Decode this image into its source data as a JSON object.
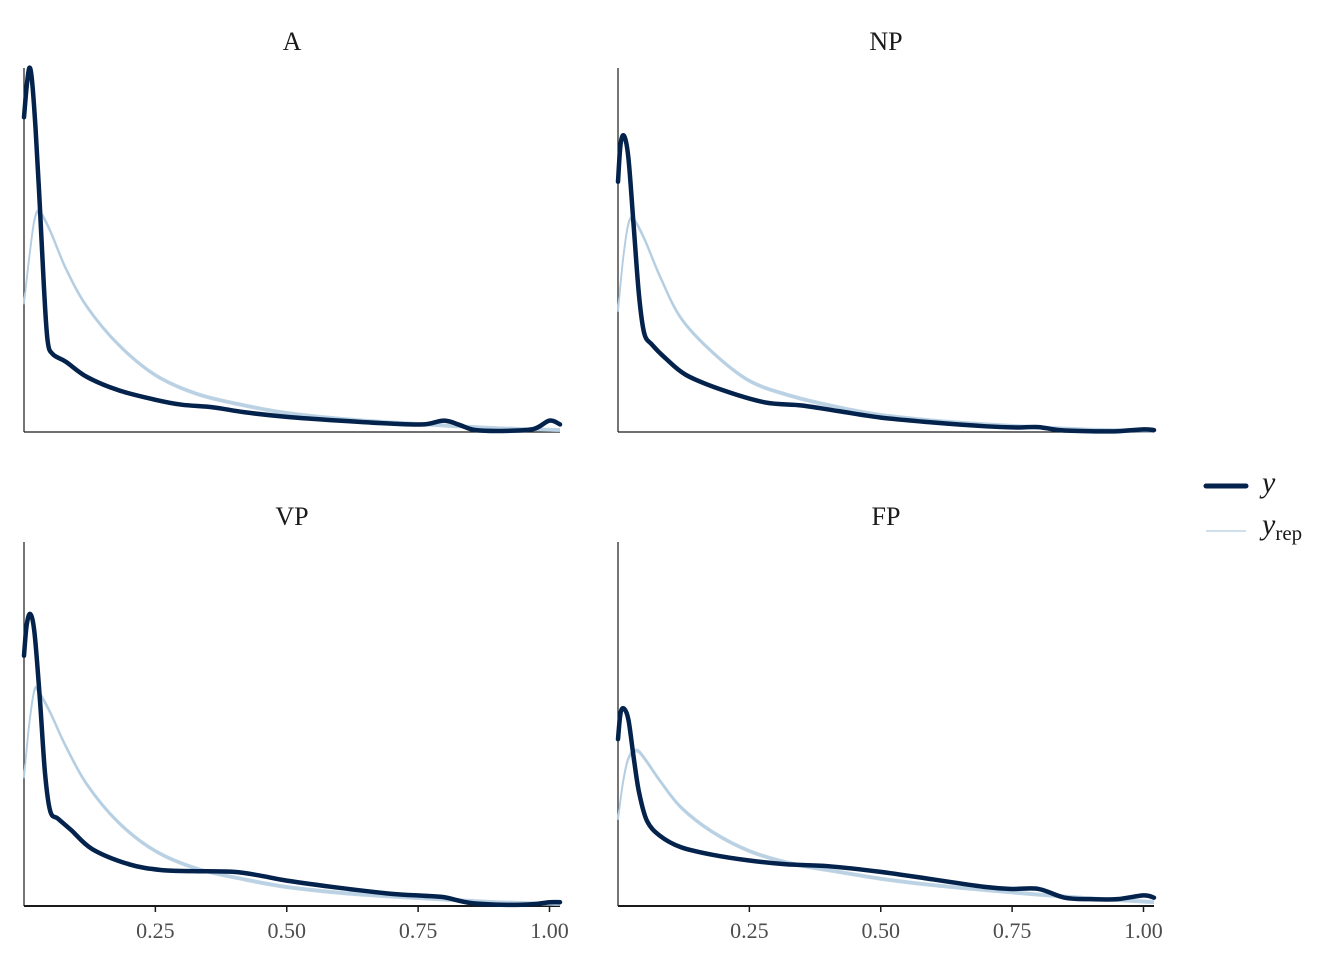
{
  "chart_data": {
    "type": "area",
    "description_kind": "posterior predictive density overlay",
    "x_ticks": [
      0.25,
      0.5,
      0.75,
      1.0
    ],
    "x_tick_labels": [
      "0.25",
      "0.50",
      "0.75",
      "1.00"
    ],
    "xlim": [
      0,
      1.02
    ],
    "y_axis_labels": false,
    "grid": false,
    "legend_position": "right",
    "colors": {
      "y": "#03224c",
      "yrep": "#b3cde0"
    },
    "legend": [
      {
        "key": "y",
        "label": "y",
        "sub": ""
      },
      {
        "key": "yrep",
        "label": "y",
        "sub": "rep"
      }
    ],
    "series": [
      {
        "name": "A",
        "ylim": [
          0,
          9.6
        ],
        "y": [
          [
            0.0,
            8.3
          ],
          [
            0.005,
            9.1
          ],
          [
            0.01,
            9.6
          ],
          [
            0.015,
            9.3
          ],
          [
            0.022,
            8.0
          ],
          [
            0.03,
            6.0
          ],
          [
            0.038,
            3.8
          ],
          [
            0.045,
            2.4
          ],
          [
            0.055,
            2.05
          ],
          [
            0.08,
            1.85
          ],
          [
            0.12,
            1.45
          ],
          [
            0.18,
            1.1
          ],
          [
            0.25,
            0.85
          ],
          [
            0.3,
            0.72
          ],
          [
            0.36,
            0.65
          ],
          [
            0.42,
            0.52
          ],
          [
            0.5,
            0.4
          ],
          [
            0.6,
            0.3
          ],
          [
            0.7,
            0.22
          ],
          [
            0.76,
            0.2
          ],
          [
            0.8,
            0.3
          ],
          [
            0.83,
            0.18
          ],
          [
            0.86,
            0.05
          ],
          [
            0.92,
            0.03
          ],
          [
            0.97,
            0.08
          ],
          [
            1.0,
            0.3
          ],
          [
            1.02,
            0.2
          ]
        ],
        "yrep": [
          [
            0.0,
            3.4
          ],
          [
            0.01,
            4.6
          ],
          [
            0.02,
            5.6
          ],
          [
            0.03,
            5.8
          ],
          [
            0.05,
            5.3
          ],
          [
            0.08,
            4.3
          ],
          [
            0.12,
            3.3
          ],
          [
            0.18,
            2.3
          ],
          [
            0.25,
            1.5
          ],
          [
            0.33,
            1.0
          ],
          [
            0.42,
            0.7
          ],
          [
            0.5,
            0.5
          ],
          [
            0.6,
            0.35
          ],
          [
            0.7,
            0.25
          ],
          [
            0.8,
            0.17
          ],
          [
            0.9,
            0.1
          ],
          [
            1.0,
            0.06
          ],
          [
            1.02,
            0.05
          ]
        ]
      },
      {
        "name": "NP",
        "ylim": [
          0,
          9.6
        ],
        "y": [
          [
            0.0,
            6.6
          ],
          [
            0.005,
            7.6
          ],
          [
            0.012,
            7.8
          ],
          [
            0.02,
            7.2
          ],
          [
            0.03,
            5.4
          ],
          [
            0.04,
            3.6
          ],
          [
            0.05,
            2.6
          ],
          [
            0.065,
            2.3
          ],
          [
            0.09,
            1.95
          ],
          [
            0.13,
            1.5
          ],
          [
            0.2,
            1.1
          ],
          [
            0.28,
            0.78
          ],
          [
            0.35,
            0.7
          ],
          [
            0.42,
            0.55
          ],
          [
            0.5,
            0.38
          ],
          [
            0.6,
            0.25
          ],
          [
            0.7,
            0.15
          ],
          [
            0.76,
            0.12
          ],
          [
            0.8,
            0.13
          ],
          [
            0.84,
            0.05
          ],
          [
            0.9,
            0.02
          ],
          [
            0.95,
            0.02
          ],
          [
            1.0,
            0.07
          ],
          [
            1.02,
            0.05
          ]
        ],
        "yrep": [
          [
            0.0,
            3.2
          ],
          [
            0.01,
            4.6
          ],
          [
            0.02,
            5.5
          ],
          [
            0.03,
            5.6
          ],
          [
            0.05,
            5.1
          ],
          [
            0.08,
            4.1
          ],
          [
            0.12,
            3.0
          ],
          [
            0.18,
            2.1
          ],
          [
            0.25,
            1.35
          ],
          [
            0.33,
            0.95
          ],
          [
            0.42,
            0.65
          ],
          [
            0.5,
            0.45
          ],
          [
            0.6,
            0.3
          ],
          [
            0.7,
            0.2
          ],
          [
            0.8,
            0.12
          ],
          [
            0.9,
            0.06
          ],
          [
            1.0,
            0.04
          ],
          [
            1.02,
            0.03
          ]
        ]
      },
      {
        "name": "VP",
        "ylim": [
          0,
          9.6
        ],
        "y": [
          [
            0.0,
            6.6
          ],
          [
            0.005,
            7.4
          ],
          [
            0.012,
            7.7
          ],
          [
            0.02,
            7.2
          ],
          [
            0.03,
            5.5
          ],
          [
            0.04,
            3.5
          ],
          [
            0.05,
            2.5
          ],
          [
            0.065,
            2.3
          ],
          [
            0.09,
            2.0
          ],
          [
            0.13,
            1.5
          ],
          [
            0.2,
            1.1
          ],
          [
            0.26,
            0.95
          ],
          [
            0.32,
            0.92
          ],
          [
            0.4,
            0.9
          ],
          [
            0.45,
            0.8
          ],
          [
            0.5,
            0.67
          ],
          [
            0.6,
            0.48
          ],
          [
            0.7,
            0.32
          ],
          [
            0.76,
            0.27
          ],
          [
            0.8,
            0.23
          ],
          [
            0.85,
            0.08
          ],
          [
            0.92,
            0.03
          ],
          [
            0.97,
            0.05
          ],
          [
            1.0,
            0.1
          ],
          [
            1.02,
            0.1
          ]
        ],
        "yrep": [
          [
            0.0,
            3.4
          ],
          [
            0.01,
            4.8
          ],
          [
            0.02,
            5.7
          ],
          [
            0.03,
            5.6
          ],
          [
            0.05,
            5.1
          ],
          [
            0.08,
            4.2
          ],
          [
            0.12,
            3.2
          ],
          [
            0.18,
            2.2
          ],
          [
            0.25,
            1.45
          ],
          [
            0.33,
            0.98
          ],
          [
            0.42,
            0.7
          ],
          [
            0.5,
            0.5
          ],
          [
            0.6,
            0.35
          ],
          [
            0.7,
            0.25
          ],
          [
            0.8,
            0.17
          ],
          [
            0.9,
            0.1
          ],
          [
            1.0,
            0.06
          ],
          [
            1.02,
            0.05
          ]
        ]
      },
      {
        "name": "FP",
        "ylim": [
          0,
          9.6
        ],
        "y": [
          [
            0.0,
            4.4
          ],
          [
            0.005,
            5.1
          ],
          [
            0.012,
            5.2
          ],
          [
            0.02,
            4.9
          ],
          [
            0.03,
            3.9
          ],
          [
            0.04,
            3.0
          ],
          [
            0.055,
            2.25
          ],
          [
            0.08,
            1.85
          ],
          [
            0.12,
            1.55
          ],
          [
            0.18,
            1.35
          ],
          [
            0.25,
            1.2
          ],
          [
            0.32,
            1.1
          ],
          [
            0.4,
            1.05
          ],
          [
            0.5,
            0.9
          ],
          [
            0.6,
            0.7
          ],
          [
            0.7,
            0.5
          ],
          [
            0.75,
            0.45
          ],
          [
            0.8,
            0.45
          ],
          [
            0.85,
            0.22
          ],
          [
            0.9,
            0.18
          ],
          [
            0.95,
            0.18
          ],
          [
            1.0,
            0.28
          ],
          [
            1.02,
            0.22
          ]
        ],
        "yrep": [
          [
            0.0,
            2.3
          ],
          [
            0.01,
            3.3
          ],
          [
            0.02,
            3.9
          ],
          [
            0.035,
            4.1
          ],
          [
            0.05,
            3.9
          ],
          [
            0.08,
            3.3
          ],
          [
            0.12,
            2.6
          ],
          [
            0.18,
            1.95
          ],
          [
            0.25,
            1.45
          ],
          [
            0.33,
            1.12
          ],
          [
            0.42,
            0.9
          ],
          [
            0.5,
            0.72
          ],
          [
            0.6,
            0.55
          ],
          [
            0.7,
            0.42
          ],
          [
            0.8,
            0.3
          ],
          [
            0.9,
            0.2
          ],
          [
            1.0,
            0.12
          ],
          [
            1.02,
            0.1
          ]
        ]
      }
    ]
  }
}
